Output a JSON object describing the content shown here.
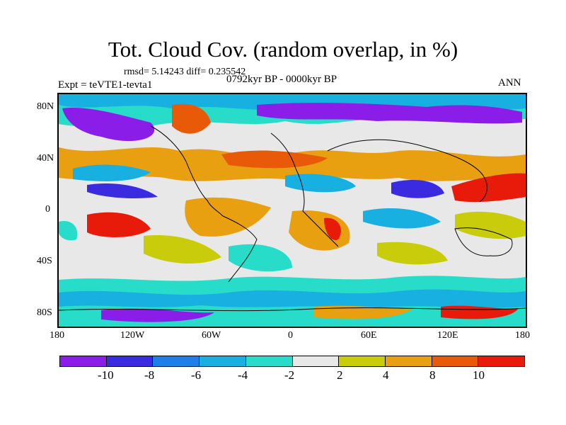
{
  "title": "Tot. Cloud Cov. (random overlap, in %)",
  "stats": "rmsd= 5.14243 diff= 0.235542",
  "expt": "Expt = teVTE1-tevta1",
  "period": "0792kyr BP - 0000kyr BP",
  "season": "ANN",
  "lat_ticks": [
    "80N",
    "40N",
    "0",
    "40S",
    "80S"
  ],
  "lon_ticks": [
    "180",
    "120W",
    "60W",
    "0",
    "60E",
    "120E",
    "180"
  ],
  "colorbar": {
    "labels": [
      "-10",
      "-8",
      "-6",
      "-4",
      "-2",
      "2",
      "4",
      "8",
      "10"
    ],
    "colors": [
      "#8a1ee8",
      "#3a2be0",
      "#1f7fe8",
      "#17b0e0",
      "#27dcc8",
      "#e8e8e8",
      "#c8cc0a",
      "#e8a011",
      "#e85a08",
      "#e81a0a"
    ]
  }
}
